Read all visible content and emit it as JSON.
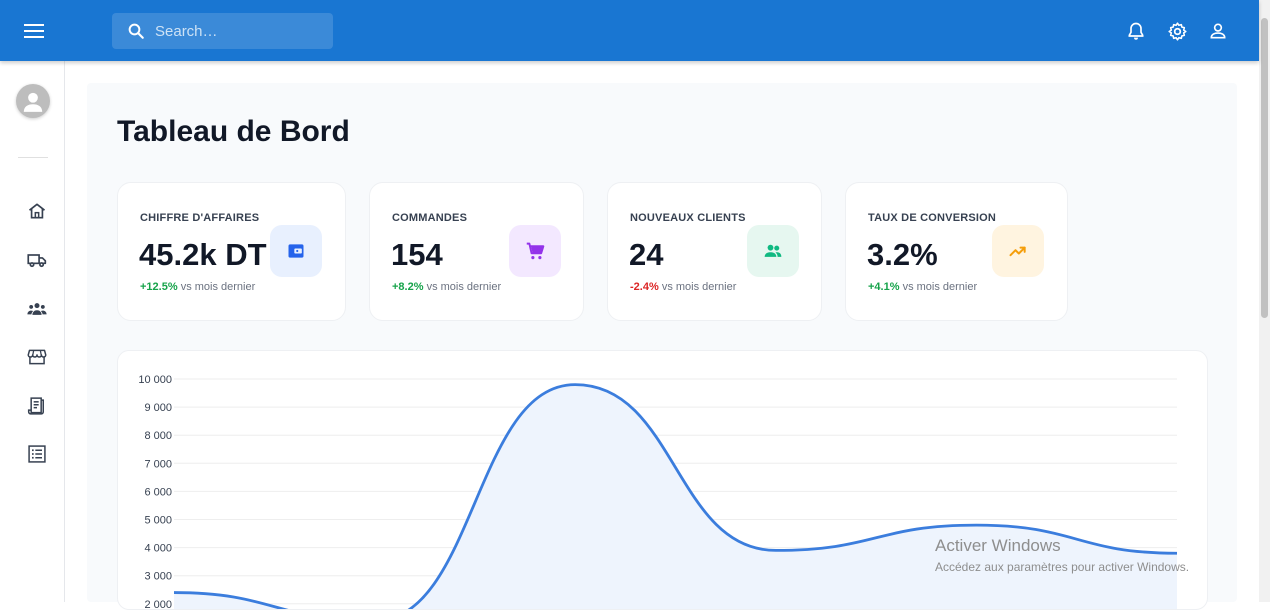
{
  "header": {
    "search_placeholder": "Search…",
    "icons": [
      "menu-icon",
      "search-icon",
      "bell-icon",
      "gear-icon",
      "user-icon"
    ]
  },
  "sidebar": {
    "items": [
      {
        "icon": "home-icon"
      },
      {
        "icon": "truck-icon"
      },
      {
        "icon": "group-icon"
      },
      {
        "icon": "store-icon"
      },
      {
        "icon": "receipt-icon"
      },
      {
        "icon": "list-icon"
      }
    ]
  },
  "page": {
    "title": "Tableau de Bord"
  },
  "stats": [
    {
      "label": "CHIFFRE D'AFFAIRES",
      "value": "45.2k DT",
      "change": "+12.5%",
      "suffix": "vs mois dernier",
      "trend": "up",
      "icon": "wallet-icon",
      "icon_color": "#2563eb",
      "icon_bg": "#e8f0fe"
    },
    {
      "label": "COMMANDES",
      "value": "154",
      "change": "+8.2%",
      "suffix": "vs mois dernier",
      "trend": "up",
      "icon": "cart-icon",
      "icon_color": "#9333ea",
      "icon_bg": "#f3e8ff"
    },
    {
      "label": "NOUVEAUX CLIENTS",
      "value": "24",
      "change": "-2.4%",
      "suffix": "vs mois dernier",
      "trend": "down",
      "icon": "people-icon",
      "icon_color": "#10b981",
      "icon_bg": "#e6f7f0"
    },
    {
      "label": "TAUX DE CONVERSION",
      "value": "3.2%",
      "change": "+4.1%",
      "suffix": "vs mois dernier",
      "trend": "up",
      "icon": "trending-up-icon",
      "icon_color": "#f59e0b",
      "icon_bg": "#fff4e0"
    }
  ],
  "chart_data": {
    "type": "area",
    "y_ticks": [
      "10 000",
      "9 000",
      "8 000",
      "7 000",
      "6 000",
      "5 000",
      "4 000",
      "3 000",
      "2 000"
    ],
    "ylim": [
      0,
      10000
    ],
    "x": [
      0,
      1,
      2,
      3,
      4,
      5,
      6
    ],
    "values": [
      2400,
      1400,
      9800,
      3900,
      4800,
      3800,
      null
    ],
    "line_color": "#3b7ddd",
    "fill_color": "#eef4fd",
    "grid": true
  },
  "watermark": {
    "line1": "Activer Windows",
    "line2": "Accédez aux paramètres pour activer Windows."
  }
}
